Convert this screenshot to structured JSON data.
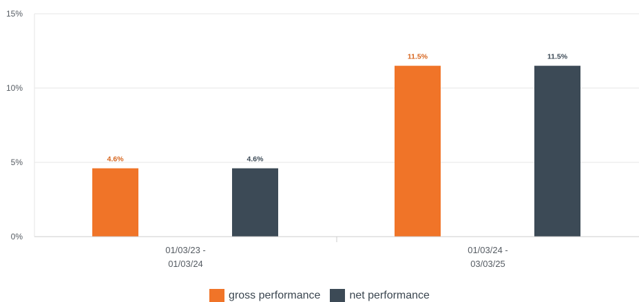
{
  "colors": {
    "gross": "#f07428",
    "net": "#3c4a56",
    "gross_label": "#d7661f",
    "net_label": "#3c4a56",
    "grid": "#e6e6e6",
    "axis": "#cccccc"
  },
  "chart_data": {
    "type": "bar",
    "categories": [
      [
        "01/03/23 -",
        "01/03/24"
      ],
      [
        "01/03/24 -",
        "03/03/25"
      ]
    ],
    "series": [
      {
        "name": "gross performance",
        "values": [
          4.6,
          11.5
        ],
        "labels": [
          "4.6%",
          "11.5%"
        ]
      },
      {
        "name": "net performance",
        "values": [
          4.6,
          11.5
        ],
        "labels": [
          "4.6%",
          "11.5%"
        ]
      }
    ],
    "y_ticks": [
      {
        "value": 0,
        "label": "0%"
      },
      {
        "value": 5,
        "label": "5%"
      },
      {
        "value": 10,
        "label": "10%"
      },
      {
        "value": 15,
        "label": "15%"
      }
    ],
    "ylim": [
      0,
      15
    ],
    "grid": true,
    "legend_position": "bottom-center",
    "title": "",
    "xlabel": "",
    "ylabel": ""
  },
  "legend": {
    "gross_label": "gross performance",
    "net_label": "net performance"
  }
}
